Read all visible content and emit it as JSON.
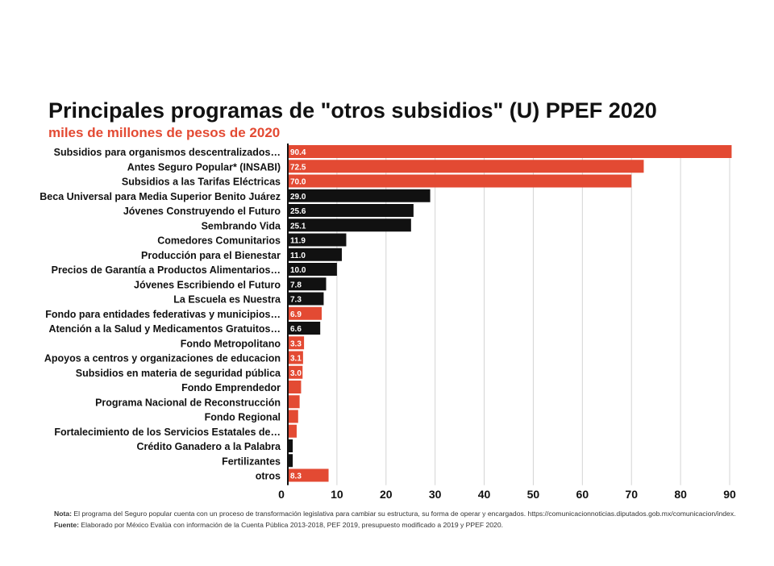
{
  "chart_data": {
    "type": "bar",
    "orientation": "horizontal",
    "title": "Principales programas de \"otros subsidios\" (U) PPEF 2020",
    "subtitle": "miles de millones de pesos de 2020",
    "xlim": [
      0,
      92
    ],
    "xticks": [
      "0",
      "10",
      "20",
      "30",
      "40",
      "50",
      "60",
      "70",
      "80",
      "90"
    ],
    "grid": true,
    "colors": {
      "red": "#e34a33",
      "black": "#111111"
    },
    "categories": [
      "Subsidios para organismos descentralizados…",
      "Antes Seguro Popular* (INSABI)",
      "Subsidios a las Tarifas Eléctricas",
      "Beca Universal para Media Superior Benito Juárez",
      "Jóvenes Construyendo el Futuro",
      "Sembrando Vida",
      "Comedores Comunitarios",
      "Producción para el Bienestar",
      "Precios de Garantía a Productos Alimentarios…",
      "Jóvenes Escribiendo el Futuro",
      "La Escuela es Nuestra",
      "Fondo para entidades federativas y municipios…",
      "Atención a la Salud y Medicamentos Gratuitos…",
      "Fondo Metropolitano",
      "Apoyos a centros y organizaciones de educacion",
      "Subsidios en materia de seguridad pública",
      "Fondo Emprendedor",
      "Programa Nacional de Reconstrucción",
      "Fondo Regional",
      "Fortalecimiento de los Servicios Estatales de…",
      "Crédito Ganadero a la Palabra",
      "Fertilizantes",
      "otros"
    ],
    "values": [
      90.4,
      72.5,
      70.0,
      29.0,
      25.6,
      25.1,
      11.9,
      11.0,
      10.0,
      7.8,
      7.3,
      6.9,
      6.6,
      3.3,
      3.1,
      3.0,
      2.7,
      2.4,
      2.1,
      1.8,
      1.0,
      1.0,
      8.3
    ],
    "data_labels": [
      "90.4",
      "72.5",
      "70.0",
      "29.0",
      "25.6",
      "25.1",
      "11.9",
      "11.0",
      "10.0",
      "7.8",
      "7.3",
      "6.9",
      "6.6",
      "3.3",
      "3.1",
      "3.0",
      "",
      "",
      "",
      "",
      "",
      "",
      "8.3"
    ],
    "bar_colors": [
      "red",
      "red",
      "red",
      "black",
      "black",
      "black",
      "black",
      "black",
      "black",
      "black",
      "black",
      "red",
      "black",
      "red",
      "red",
      "red",
      "red",
      "red",
      "red",
      "red",
      "black",
      "black",
      "red"
    ]
  },
  "notes": {
    "nota_label": "Nota:",
    "nota_text": " El programa del Seguro popular cuenta con un proceso de transformación legislativa para cambiar su estructura, su forma de operar y encargados. https://comunicacionnoticias.diputados.gob.mx/comunicacion/index.",
    "fuente_label": "Fuente:",
    "fuente_text": " Elaborado por México Evalúa con información de la Cuenta Pública 2013-2018, PEF 2019, presupuesto modificado a 2019 y PPEF 2020."
  }
}
